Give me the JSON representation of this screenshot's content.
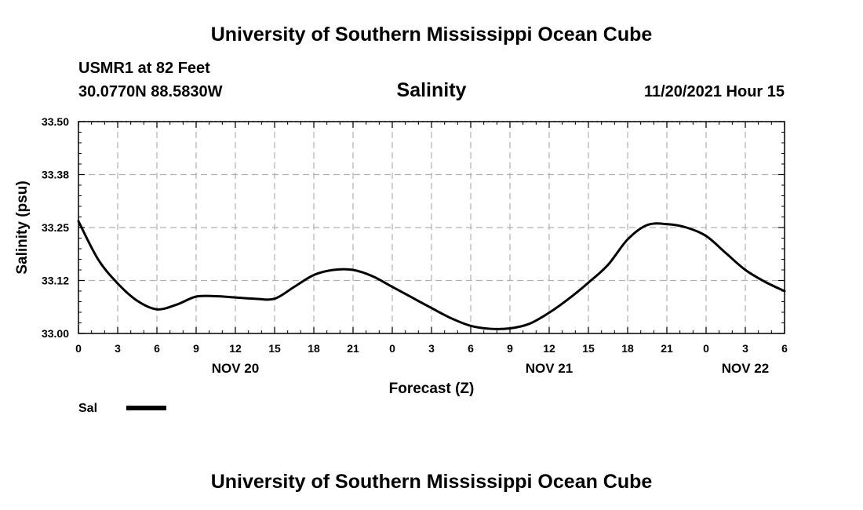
{
  "header": {
    "title": "University of Southern Mississippi Ocean Cube",
    "station": "USMR1 at 82 Feet",
    "coordinates": "30.0770N  88.5830W",
    "timestamp": "11/20/2021 Hour 15"
  },
  "footer": {
    "title": "University of Southern Mississippi Ocean Cube"
  },
  "chart_data": {
    "type": "line",
    "title": "Salinity",
    "xlabel": "Forecast (Z)",
    "ylabel": "Salinity (psu)",
    "ylim": [
      33.0,
      33.5
    ],
    "xlim": [
      0,
      54
    ],
    "y_ticks": [
      33.0,
      33.125,
      33.25,
      33.375,
      33.5
    ],
    "y_tick_labels": [
      "33.00",
      "33.12",
      "33.25",
      "33.38",
      "33.50"
    ],
    "x_ticks": [
      0,
      3,
      6,
      9,
      12,
      15,
      18,
      21,
      24,
      27,
      30,
      33,
      36,
      39,
      42,
      45,
      48,
      51,
      54
    ],
    "x_tick_labels": [
      "0",
      "3",
      "6",
      "9",
      "12",
      "15",
      "18",
      "21",
      "0",
      "3",
      "6",
      "9",
      "12",
      "15",
      "18",
      "21",
      "0",
      "3",
      "6"
    ],
    "day_labels": [
      {
        "label": "NOV 20",
        "x": 12
      },
      {
        "label": "NOV 21",
        "x": 36
      },
      {
        "label": "NOV 22",
        "x": 51
      }
    ],
    "grid": true,
    "legend_position": "bottom-left",
    "series": [
      {
        "name": "Sal",
        "x": [
          0,
          1.5,
          3,
          4.5,
          6,
          7.5,
          9,
          10.5,
          12,
          13.5,
          15,
          16.5,
          18,
          19.5,
          21,
          22.5,
          24,
          25.5,
          27,
          28.5,
          30,
          31.5,
          33,
          34.5,
          36,
          37.5,
          39,
          40.5,
          42,
          43.5,
          45,
          46.5,
          48,
          49.5,
          51,
          52.5,
          54
        ],
        "values": [
          33.265,
          33.175,
          33.118,
          33.077,
          33.057,
          33.068,
          33.087,
          33.088,
          33.085,
          33.082,
          33.082,
          33.11,
          33.138,
          33.15,
          33.15,
          33.135,
          33.11,
          33.085,
          33.06,
          33.036,
          33.018,
          33.011,
          33.012,
          33.023,
          33.049,
          33.082,
          33.12,
          33.162,
          33.222,
          33.256,
          33.258,
          33.25,
          33.23,
          33.19,
          33.15,
          33.122,
          33.1
        ]
      }
    ]
  }
}
